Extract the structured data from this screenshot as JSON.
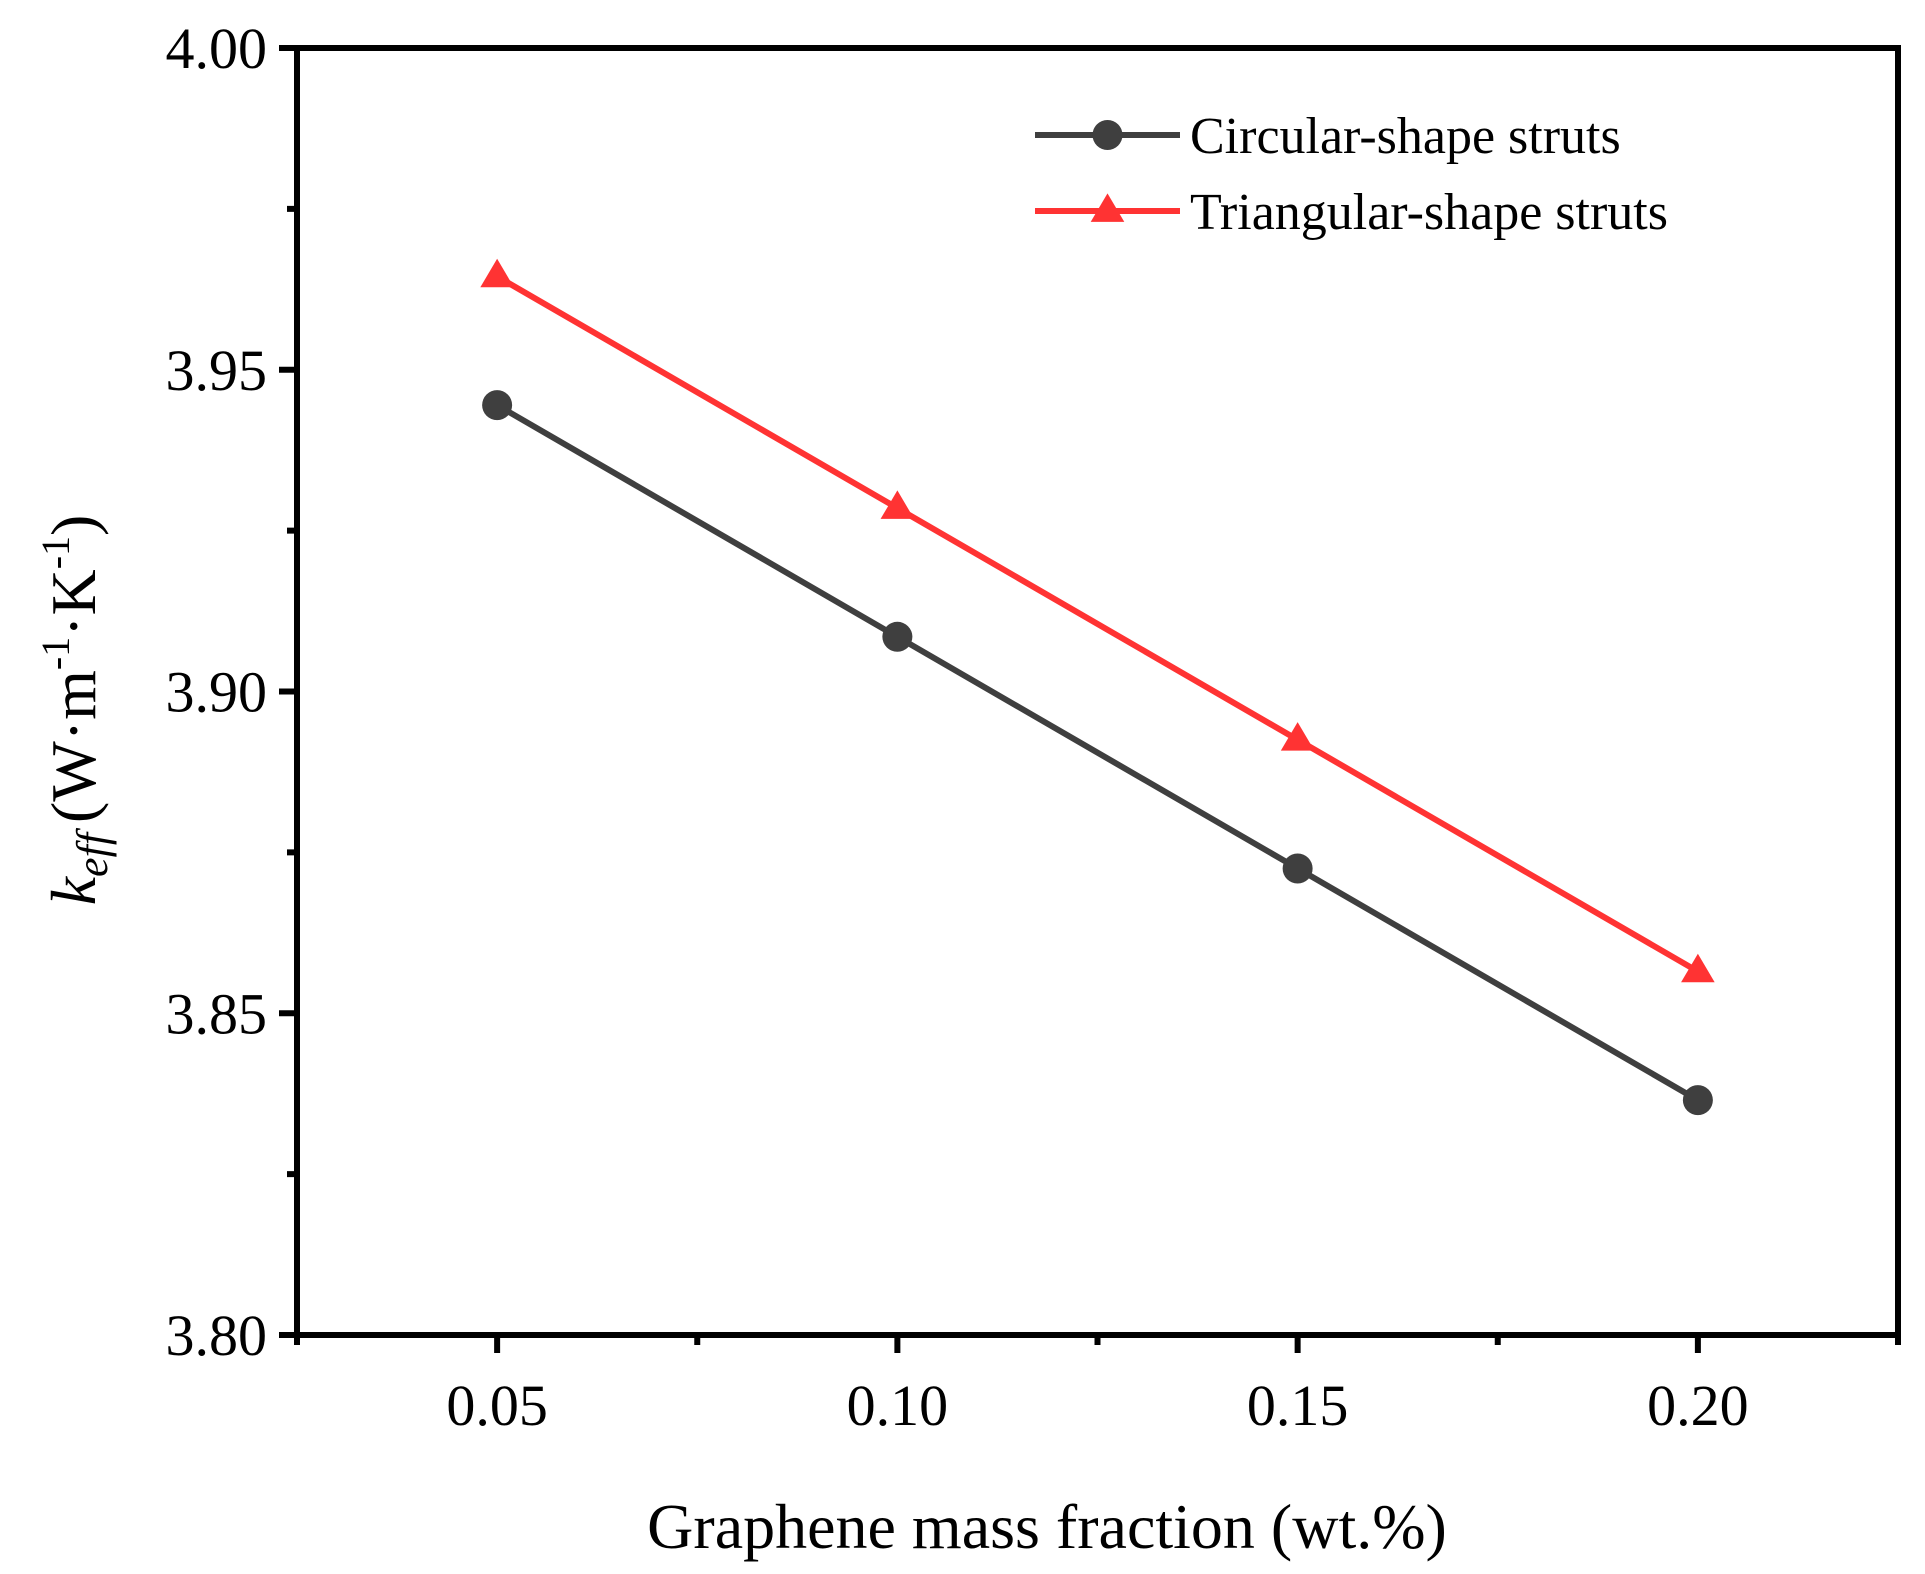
{
  "chart_data": {
    "type": "line",
    "xlabel": "Graphene mass fraction (wt.%)",
    "ylabel": {
      "symbol": "k",
      "subscript": "eff",
      "unit_open": "(W·m",
      "exp1": "-1",
      "unit_mid": "·K",
      "exp2": "-1",
      "unit_close": ")"
    },
    "xlim": [
      0.025,
      0.225
    ],
    "ylim": [
      3.8,
      4.0
    ],
    "x_ticks": [
      0.05,
      0.1,
      0.15,
      0.2
    ],
    "x_tick_labels": [
      "0.05",
      "0.10",
      "0.15",
      "0.20"
    ],
    "y_ticks": [
      3.8,
      3.85,
      3.9,
      3.95,
      4.0
    ],
    "y_tick_labels": [
      "3.80",
      "3.85",
      "3.90",
      "3.95",
      "4.00"
    ],
    "legend_position": "top-right",
    "grid": false,
    "series": [
      {
        "name": "Circular-shape struts",
        "marker": "circle",
        "color": "#3f3f3f",
        "x": [
          0.05,
          0.1,
          0.15,
          0.2
        ],
        "values": [
          3.9445,
          3.9085,
          3.8725,
          3.8365
        ]
      },
      {
        "name": "Triangular-shape struts",
        "marker": "triangle",
        "color": "#ff3333",
        "x": [
          0.05,
          0.1,
          0.15,
          0.2
        ],
        "values": [
          3.9645,
          3.9285,
          3.8925,
          3.8565
        ]
      }
    ]
  }
}
